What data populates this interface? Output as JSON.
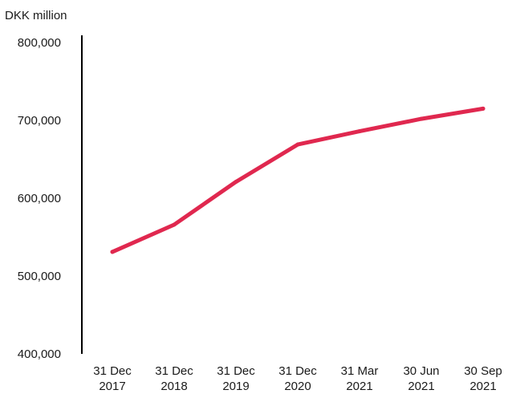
{
  "chart_data": {
    "type": "line",
    "title": "",
    "ylabel": "DKK million",
    "xlabel": "",
    "categories": [
      [
        "31 Dec",
        "2017"
      ],
      [
        "31 Dec",
        "2018"
      ],
      [
        "31 Dec",
        "2019"
      ],
      [
        "31 Dec",
        "2020"
      ],
      [
        "31 Mar",
        "2021"
      ],
      [
        "30 Jun",
        "2021"
      ],
      [
        "30 Sep",
        "2021"
      ]
    ],
    "series": [
      {
        "values": [
          531000,
          566000,
          621000,
          669000,
          686000,
          702000,
          715000
        ]
      }
    ],
    "ylim": [
      400000,
      800000
    ],
    "yticks": [
      "400,000",
      "500,000",
      "600,000",
      "700,000",
      "800,000"
    ],
    "ytick_values": [
      400000,
      500000,
      600000,
      700000,
      800000
    ],
    "grid": false,
    "legend": "none",
    "line_color": "#e0284f"
  }
}
